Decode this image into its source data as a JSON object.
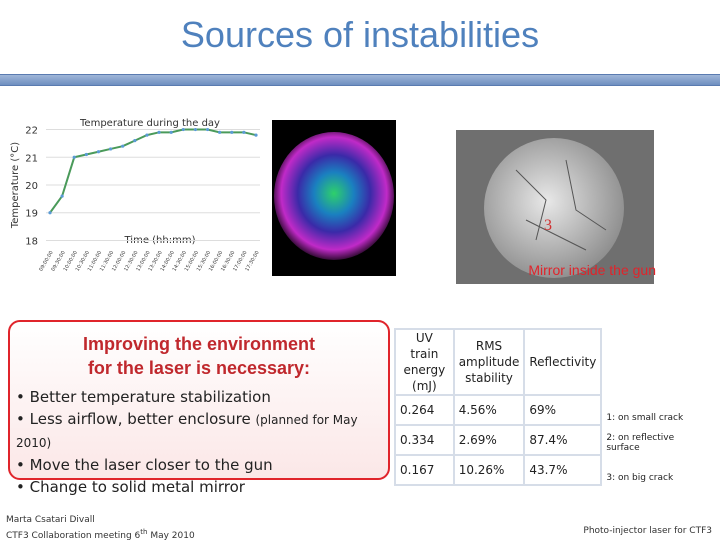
{
  "header": {
    "title": "Sources of instabilities"
  },
  "chart_data": {
    "type": "line",
    "title": "Temperature during the day",
    "x_label": "Time (hh:mm)",
    "y_label": "Temperature (°C)",
    "categories": [
      "09:00:00",
      "09:30:00",
      "10:00:00",
      "10:30:00",
      "11:00:00",
      "11:30:00",
      "12:00:00",
      "12:30:00",
      "13:00:00",
      "13:30:00",
      "14:00:00",
      "14:30:00",
      "15:00:00",
      "15:30:00",
      "16:00:00",
      "16:30:00",
      "17:00:00",
      "17:30:00"
    ],
    "values": [
      19.0,
      19.6,
      21.0,
      21.1,
      21.2,
      21.3,
      21.4,
      21.6,
      21.8,
      21.9,
      21.9,
      22.0,
      22.0,
      22.0,
      21.9,
      21.9,
      21.9,
      21.8
    ],
    "color": "#4a9a5a",
    "ylim": [
      17.8,
      22.2
    ],
    "yticks": [
      18,
      19,
      20,
      21,
      22
    ],
    "grid": true
  },
  "image_caption": "Mirror inside the gun",
  "box": {
    "heading": [
      "Improving the environment",
      "for the laser is necessary:"
    ],
    "bullets": [
      "• Better temperature stabilization",
      "• Less airflow, better enclosure",
      "• Move the laser closer to the gun",
      "• Change to solid metal mirror"
    ],
    "bullet_note": "(planned for May 2010)"
  },
  "table": {
    "header": [
      [
        "UV train",
        "energy",
        "(mJ)"
      ],
      [
        "RMS",
        "amplitude",
        "stability"
      ],
      [
        "Reflectivity"
      ]
    ],
    "rows": [
      [
        "0.264",
        "4.56%",
        "69%",
        "1: on small crack"
      ],
      [
        "0.334",
        "2.69%",
        "87.4%",
        "2: on reflective surface"
      ],
      [
        "0.167",
        "10.26%",
        "43.7%",
        "3: on big crack"
      ]
    ]
  },
  "footer": {
    "left": [
      "Marta Csatari Divall",
      "CTF3 Collaboration meeting 6",
      "th",
      " May 2010"
    ],
    "right": "Photo-injector laser for CTF3"
  }
}
